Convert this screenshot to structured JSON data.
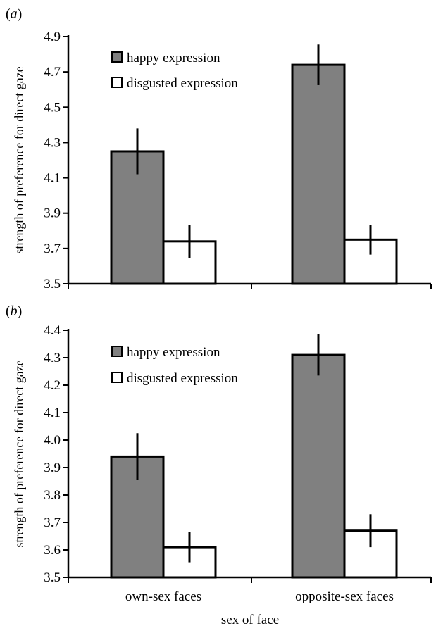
{
  "chart_data": [
    {
      "type": "bar",
      "panel_label": "(a)",
      "categories": [
        "own-sex faces",
        "opposite-sex faces"
      ],
      "series": [
        {
          "name": "happy expression",
          "color": "#808080",
          "values": [
            4.25,
            4.74
          ],
          "error": [
            0.13,
            0.115
          ]
        },
        {
          "name": "disgusted expression",
          "color": "#ffffff",
          "values": [
            3.74,
            3.75
          ],
          "error": [
            0.095,
            0.085
          ]
        }
      ],
      "ylabel": "strength of preference for direct gaze",
      "xlabel": "",
      "ylim": [
        3.5,
        4.9
      ],
      "yticks": [
        "3.5",
        "3.7",
        "3.9",
        "4.1",
        "4.3",
        "4.5",
        "4.7",
        "4.9"
      ],
      "show_category_labels": false,
      "legend": "top-left",
      "grid": false
    },
    {
      "type": "bar",
      "panel_label": "(b)",
      "categories": [
        "own-sex faces",
        "opposite-sex faces"
      ],
      "series": [
        {
          "name": "happy expression",
          "color": "#808080",
          "values": [
            3.94,
            4.31
          ],
          "error": [
            0.085,
            0.075
          ]
        },
        {
          "name": "disgusted expression",
          "color": "#ffffff",
          "values": [
            3.61,
            3.67
          ],
          "error": [
            0.055,
            0.06
          ]
        }
      ],
      "ylabel": "strength of preference for direct gaze",
      "xlabel": "sex of face",
      "ylim": [
        3.5,
        4.4
      ],
      "yticks": [
        "3.5",
        "3.6",
        "3.7",
        "3.8",
        "3.9",
        "4.0",
        "4.1",
        "4.2",
        "4.3",
        "4.4"
      ],
      "show_category_labels": true,
      "legend": "top-left",
      "grid": false
    }
  ]
}
